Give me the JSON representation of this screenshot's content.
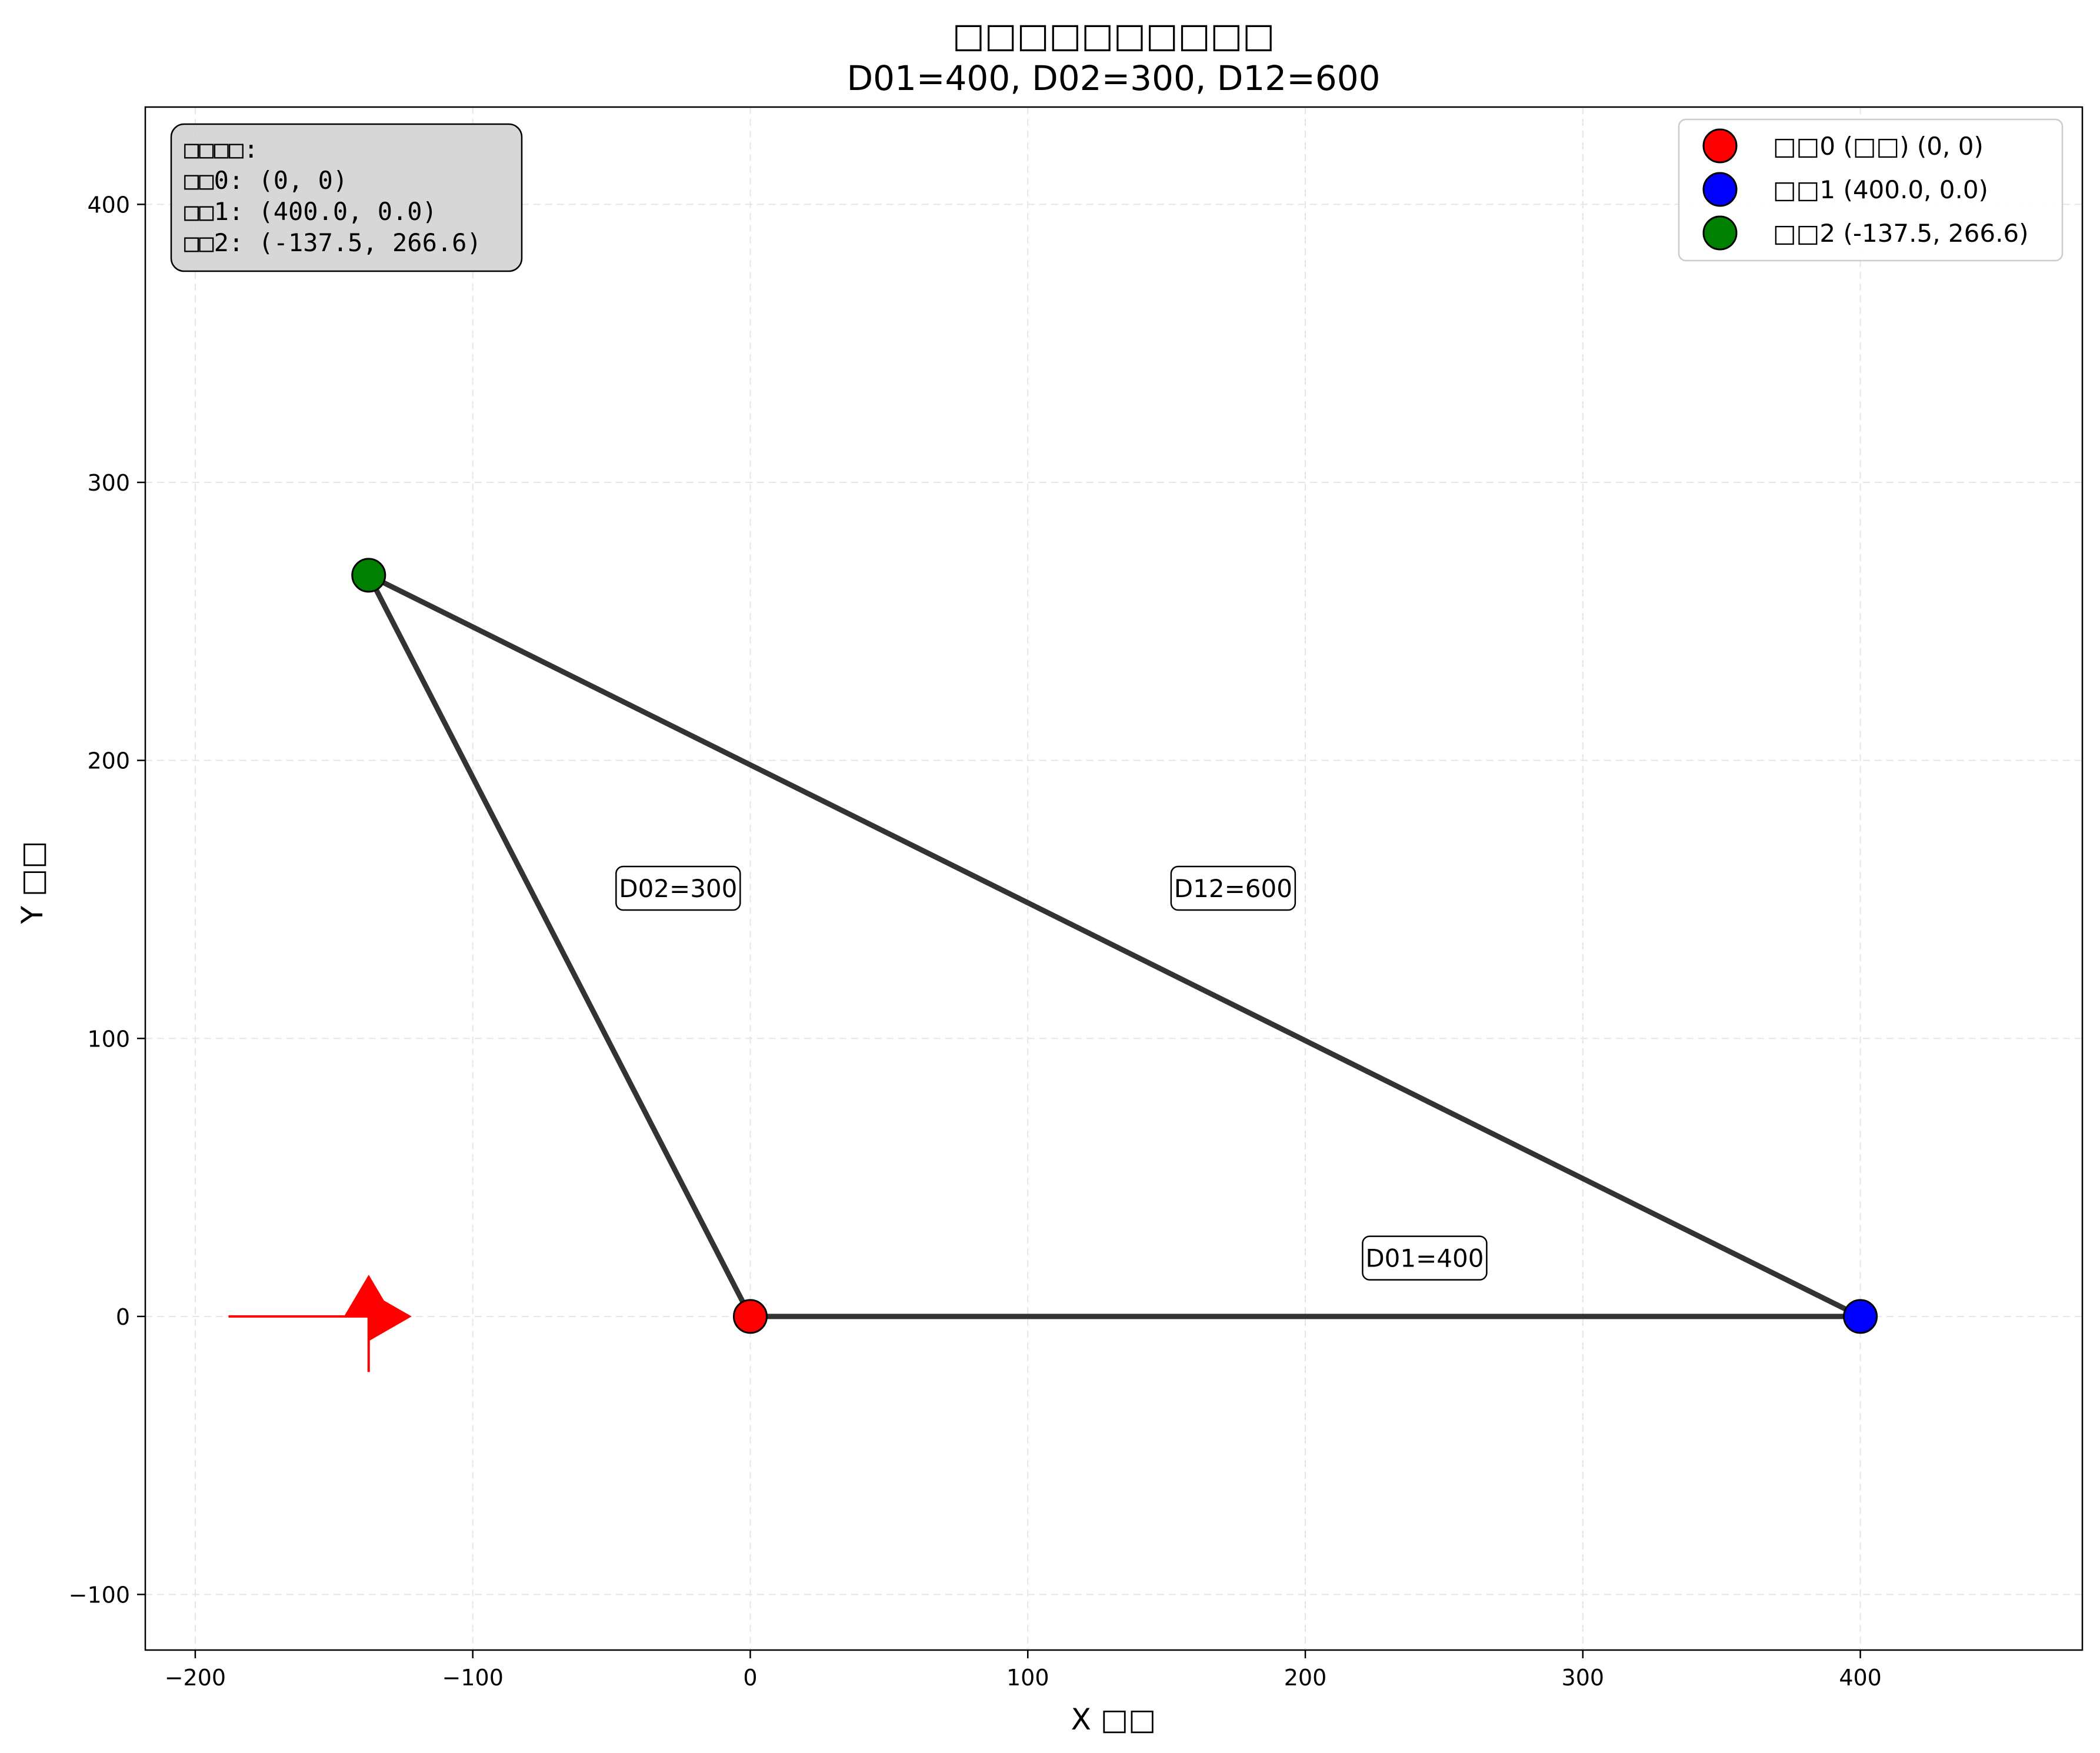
{
  "chart_data": {
    "type": "scatter",
    "title": "□□□□□□□□□□",
    "subtitle": "D01=400, D02=300, D12=600",
    "xlabel": "X □□",
    "ylabel": "Y □□",
    "xlim": [
      -218,
      480
    ],
    "ylim": [
      -120,
      435
    ],
    "xticks": [
      -200,
      -100,
      0,
      100,
      200,
      300,
      400
    ],
    "yticks": [
      -100,
      0,
      100,
      200,
      300,
      400
    ],
    "xtick_labels": [
      "−200",
      "−100",
      "0",
      "100",
      "200",
      "300",
      "400"
    ],
    "ytick_labels": [
      "−100",
      "0",
      "100",
      "200",
      "300",
      "400"
    ],
    "grid": true,
    "legend_position": "top-right",
    "points": [
      {
        "label": "□□0 (□□) (0, 0)",
        "x": 0,
        "y": 0,
        "color": "#ff0000"
      },
      {
        "label": "□□1 (400.0, 0.0)",
        "x": 400,
        "y": 0,
        "color": "#0000ff"
      },
      {
        "label": "□□2 (-137.5, 266.6)",
        "x": -137.5,
        "y": 266.6,
        "color": "#008000"
      }
    ],
    "edges": [
      {
        "from": 0,
        "to": 1,
        "label": "D01=400",
        "label_x": 243,
        "label_y": 21
      },
      {
        "from": 0,
        "to": 2,
        "label": "D02=300",
        "label_x": -26,
        "label_y": 154
      },
      {
        "from": 1,
        "to": 2,
        "label": "D12=600",
        "label_x": 174,
        "label_y": 154
      }
    ],
    "info_box": {
      "lines": [
        "□□□□:",
        "□□0: (0, 0)",
        "□□1: (400.0, 0.0)",
        "□□2: (-137.5, 266.6)"
      ]
    },
    "direction_arrows": {
      "color": "#ff0000",
      "origin": [
        -137.5,
        0
      ],
      "east_from_x": -188,
      "east_tip_x": -122,
      "north_tip_y": 15,
      "south_to_y": -20
    },
    "line_color": "#333333",
    "grid_color": "#e6e6e6"
  }
}
